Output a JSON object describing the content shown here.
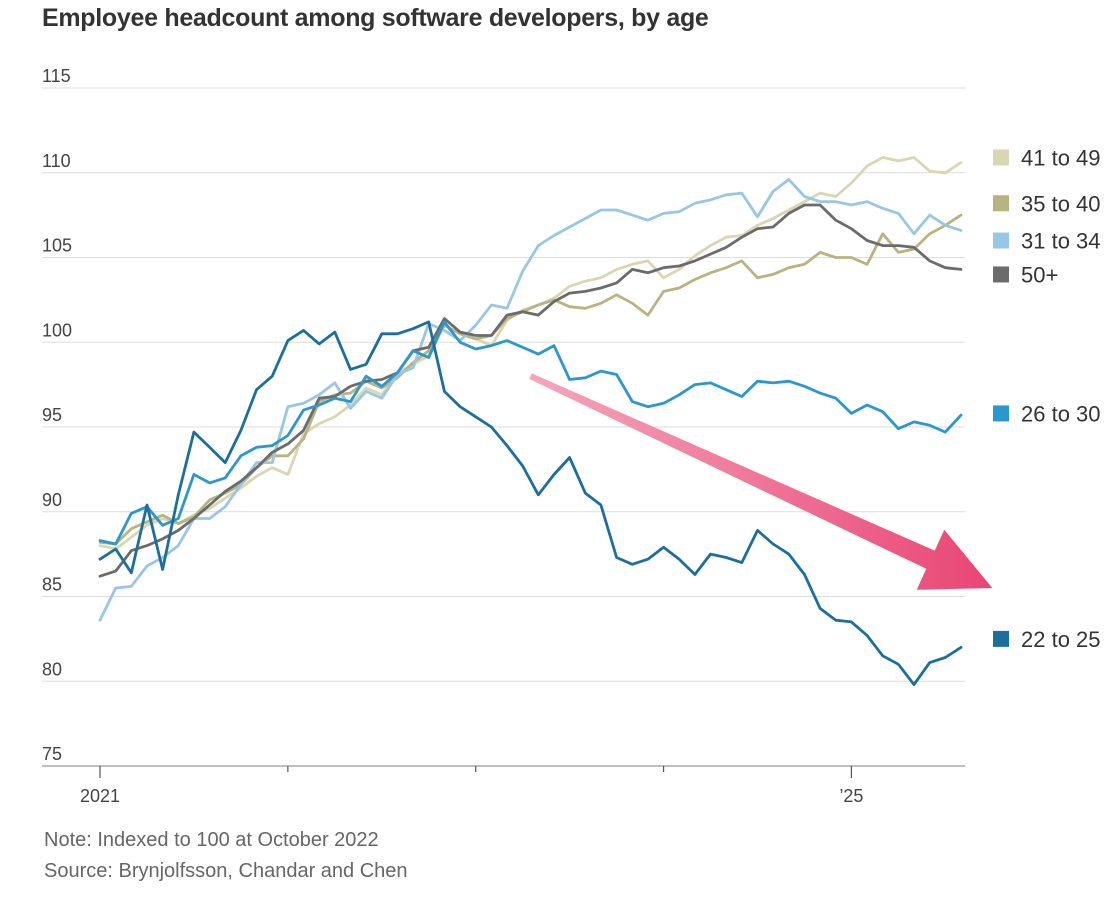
{
  "colors": {
    "41 to 49": "#d9d7b2",
    "35 to 40": "#b8b481",
    "31 to 34": "#9ac6e6",
    "50+": "#6b6b6b",
    "26 to 30": "#2b97cf",
    "22 to 25": "#1c6e9c",
    "arrow": "#e94574",
    "grid": "#dddddd",
    "axis": "#999999"
  },
  "chart_data": {
    "type": "line",
    "title": "Employee headcount among software developers, by age",
    "note": "Note: Indexed to 100 at October 2022",
    "source": "Source: Brynjolfsson, Chandar and Chen",
    "xlabel": "",
    "ylabel": "",
    "ylim": [
      75,
      115
    ],
    "yticks": [
      115,
      110,
      105,
      100,
      95,
      90,
      85,
      80,
      75
    ],
    "xlim": [
      0,
      55
    ],
    "xticks": [
      {
        "value": 0,
        "label": "2021"
      },
      {
        "value": 12,
        "label": ""
      },
      {
        "value": 24,
        "label": ""
      },
      {
        "value": 36,
        "label": ""
      },
      {
        "value": 48,
        "label": "’25"
      }
    ],
    "x_note": "months since January 2021",
    "grid": true,
    "legend": "right, labels at line ends",
    "series": [
      {
        "name": "41 to 49",
        "values": [
          88.0,
          87.8,
          88.5,
          89.2,
          89.6,
          89.3,
          89.8,
          90.2,
          90.8,
          91.4,
          92.1,
          92.6,
          92.2,
          94.6,
          95.2,
          95.6,
          96.3,
          97.3,
          96.9,
          98.2,
          98.7,
          99.2,
          101.0,
          100.5,
          100.2,
          99.8,
          101.3,
          101.9,
          102.2,
          102.6,
          103.3,
          103.6,
          103.8,
          104.3,
          104.6,
          104.8,
          103.8,
          104.3,
          105.1,
          105.7,
          106.2,
          106.3,
          106.9,
          107.3,
          107.8,
          108.3,
          108.8,
          108.6,
          109.4,
          110.4,
          110.9,
          110.7,
          110.9,
          110.1,
          110.0,
          110.6
        ]
      },
      {
        "name": "35 to 40",
        "values": [
          88.2,
          88.1,
          89.0,
          89.4,
          89.8,
          89.3,
          89.7,
          90.7,
          91.1,
          91.6,
          92.6,
          93.3,
          93.3,
          94.3,
          96.5,
          96.9,
          97.0,
          97.7,
          97.3,
          97.9,
          98.8,
          99.5,
          101.0,
          100.5,
          100.2,
          100.4,
          101.4,
          101.8,
          102.2,
          102.5,
          102.1,
          102.0,
          102.3,
          102.8,
          102.3,
          101.6,
          103.0,
          103.2,
          103.7,
          104.1,
          104.4,
          104.8,
          103.8,
          104.0,
          104.4,
          104.6,
          105.3,
          105.0,
          105.0,
          104.6,
          106.4,
          105.3,
          105.5,
          106.4,
          106.9,
          107.5
        ]
      },
      {
        "name": "31 to 34",
        "values": [
          83.6,
          85.5,
          85.6,
          86.8,
          87.3,
          88.0,
          89.6,
          89.6,
          90.3,
          91.6,
          92.9,
          92.9,
          96.2,
          96.4,
          96.9,
          97.6,
          96.1,
          97.1,
          96.7,
          98.1,
          98.5,
          101.1,
          100.7,
          100.1,
          101.0,
          102.2,
          102.0,
          104.2,
          105.7,
          106.3,
          106.8,
          107.3,
          107.8,
          107.8,
          107.5,
          107.2,
          107.6,
          107.7,
          108.2,
          108.4,
          108.7,
          108.8,
          107.4,
          108.9,
          109.6,
          108.6,
          108.3,
          108.3,
          108.1,
          108.3,
          107.9,
          107.6,
          106.4,
          107.5,
          106.9,
          106.6
        ]
      },
      {
        "name": "50+",
        "values": [
          86.2,
          86.5,
          87.7,
          88.0,
          88.4,
          88.9,
          89.6,
          90.4,
          91.2,
          91.8,
          92.6,
          93.5,
          94.0,
          94.8,
          96.7,
          96.8,
          97.4,
          97.7,
          97.8,
          98.2,
          99.5,
          99.7,
          101.4,
          100.6,
          100.4,
          100.4,
          101.6,
          101.8,
          101.6,
          102.4,
          102.9,
          103.0,
          103.2,
          103.5,
          104.3,
          104.1,
          104.4,
          104.5,
          104.8,
          105.2,
          105.6,
          106.2,
          106.7,
          106.8,
          107.6,
          108.1,
          108.1,
          107.2,
          106.7,
          106.0,
          105.7,
          105.7,
          105.6,
          104.8,
          104.4,
          104.3
        ]
      },
      {
        "name": "26 to 30",
        "values": [
          88.3,
          88.1,
          89.9,
          90.3,
          89.2,
          89.6,
          92.2,
          91.7,
          92.0,
          93.3,
          93.8,
          93.9,
          94.5,
          96.0,
          96.3,
          96.7,
          96.5,
          98.0,
          97.4,
          98.2,
          99.5,
          99.1,
          101.2,
          100.0,
          99.6,
          99.8,
          100.1,
          99.7,
          99.3,
          99.8,
          97.8,
          97.9,
          98.3,
          98.1,
          96.5,
          96.2,
          96.4,
          96.9,
          97.5,
          97.6,
          97.2,
          96.8,
          97.7,
          97.6,
          97.7,
          97.4,
          97.0,
          96.7,
          95.8,
          96.3,
          95.9,
          94.9,
          95.3,
          95.1,
          94.7,
          95.7
        ]
      },
      {
        "name": "22 to 25",
        "values": [
          87.2,
          87.8,
          86.4,
          90.4,
          86.6,
          91.0,
          94.7,
          93.8,
          92.9,
          94.8,
          97.2,
          98.0,
          100.1,
          100.7,
          99.9,
          100.6,
          98.4,
          98.7,
          100.5,
          100.5,
          100.8,
          101.2,
          97.1,
          96.2,
          95.6,
          95.0,
          93.9,
          92.7,
          91.0,
          92.2,
          93.2,
          91.1,
          90.4,
          87.3,
          86.9,
          87.2,
          87.9,
          87.2,
          86.3,
          87.5,
          87.3,
          87.0,
          88.9,
          88.1,
          87.5,
          86.3,
          84.3,
          83.6,
          83.5,
          82.7,
          81.5,
          81.0,
          79.8,
          81.1,
          81.4,
          82.0
        ]
      }
    ],
    "annotations": [
      {
        "type": "arrow",
        "from": [
          27.5,
          98.0
        ],
        "to": [
          57.0,
          85.5
        ],
        "description": "downward trend arrow"
      }
    ]
  }
}
